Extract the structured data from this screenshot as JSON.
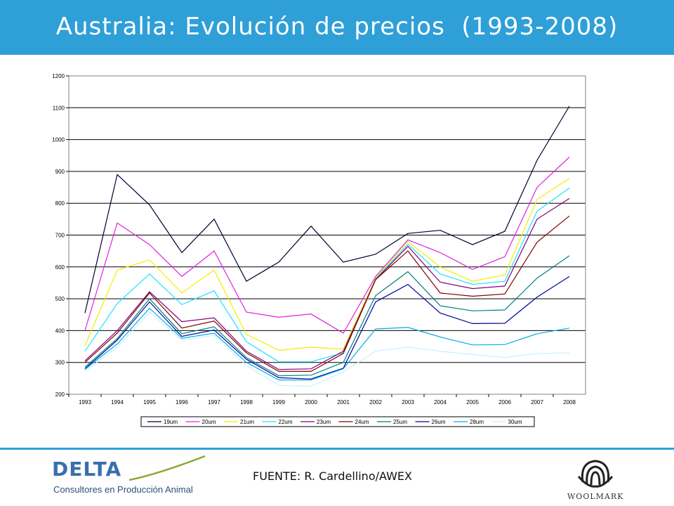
{
  "header": {
    "title": "Australia: Evolución de precios  (1993-2008)",
    "background": "#2f9fd8"
  },
  "footer": {
    "source": "FUENTE: R. Cardellino/AWEX",
    "delta_logo": {
      "word": "DELTA",
      "tagline": "Consultores en Producción Animal"
    },
    "woolmark_logo": {
      "word": "WOOLMARK"
    }
  },
  "chart_data": {
    "type": "line",
    "title": "",
    "xlabel": "",
    "ylabel": "",
    "ylim": [
      200,
      1200
    ],
    "yticks": [
      "200",
      "300",
      "400",
      "500",
      "600",
      "700",
      "800",
      "900",
      "1000",
      "1100",
      "1200"
    ],
    "categories": [
      "1993",
      "1994",
      "1995",
      "1996",
      "1997",
      "1998",
      "1999",
      "2000",
      "2001",
      "2002",
      "2003",
      "2004",
      "2005",
      "2006",
      "2007",
      "2008"
    ],
    "grid": "horizontal",
    "legend_position": "bottom",
    "series": [
      {
        "name": "19um",
        "color": "#000033",
        "values": [
          455,
          890,
          795,
          645,
          750,
          555,
          615,
          728,
          615,
          640,
          705,
          715,
          670,
          712,
          935,
          1105
        ]
      },
      {
        "name": "20um",
        "color": "#e020e0",
        "values": [
          400,
          738,
          670,
          570,
          650,
          458,
          442,
          452,
          392,
          570,
          685,
          645,
          592,
          632,
          850,
          945
        ]
      },
      {
        "name": "21um",
        "color": "#f0f000",
        "values": [
          352,
          590,
          622,
          518,
          590,
          388,
          338,
          348,
          342,
          565,
          680,
          600,
          555,
          575,
          812,
          878
        ]
      },
      {
        "name": "22um",
        "color": "#20e0ff",
        "values": [
          335,
          485,
          578,
          482,
          525,
          365,
          302,
          302,
          330,
          562,
          672,
          578,
          545,
          555,
          775,
          848
        ]
      },
      {
        "name": "23um",
        "color": "#800080",
        "values": [
          305,
          400,
          522,
          428,
          440,
          335,
          278,
          280,
          335,
          560,
          665,
          552,
          532,
          540,
          750,
          815
        ]
      },
      {
        "name": "24um",
        "color": "#800000",
        "values": [
          300,
          392,
          518,
          408,
          430,
          330,
          272,
          272,
          328,
          560,
          650,
          518,
          508,
          515,
          678,
          760
        ]
      },
      {
        "name": "25um",
        "color": "#008080",
        "values": [
          285,
          375,
          500,
          390,
          412,
          315,
          258,
          260,
          300,
          510,
          585,
          478,
          462,
          465,
          565,
          635
        ]
      },
      {
        "name": "26um",
        "color": "#0000a0",
        "values": [
          280,
          370,
          490,
          382,
          402,
          310,
          252,
          248,
          282,
          490,
          545,
          455,
          422,
          423,
          505,
          570
        ]
      },
      {
        "name": "28um",
        "color": "#00b0e0",
        "values": [
          278,
          358,
          470,
          376,
          392,
          300,
          245,
          245,
          280,
          405,
          410,
          380,
          355,
          356,
          390,
          408
        ]
      },
      {
        "name": "30um",
        "color": "#c8f0ff",
        "values": [
          272,
          348,
          458,
          370,
          385,
          290,
          228,
          225,
          270,
          335,
          348,
          335,
          325,
          315,
          328,
          330
        ]
      }
    ]
  }
}
